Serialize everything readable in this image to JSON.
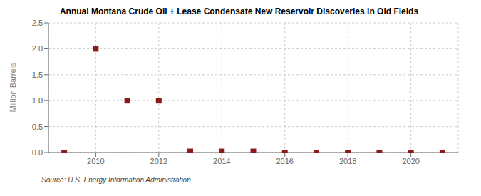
{
  "chart_data": {
    "type": "scatter",
    "title": "Annual Montana Crude Oil + Lease Condensate New Reservoir Discoveries in Old Fields",
    "ylabel": "Million Barrels",
    "annotations": [
      "Source: U.S. Energy Information Administration"
    ],
    "x": [
      2009,
      2010,
      2011,
      2012,
      2013,
      2014,
      2015,
      2016,
      2017,
      2018,
      2019,
      2020,
      2021
    ],
    "values": [
      0.0,
      2.0,
      1.0,
      1.0,
      0.02,
      0.02,
      0.02,
      0.0,
      0.0,
      0.0,
      0.0,
      0.0,
      0.0
    ],
    "color": "#8b1a1a",
    "marker": "square",
    "xlim": [
      2008.5,
      2021.5
    ],
    "xticks": [
      2010,
      2012,
      2014,
      2016,
      2018,
      2020
    ],
    "ylim": [
      0.0,
      2.5
    ],
    "yticks": [
      {
        "value": 0.0,
        "label": "0.0"
      },
      0.5,
      {
        "value": 1.0,
        "label": "1.0"
      },
      1.5,
      {
        "value": 2.0,
        "label": "2.0"
      },
      2.5
    ],
    "grid": true
  }
}
